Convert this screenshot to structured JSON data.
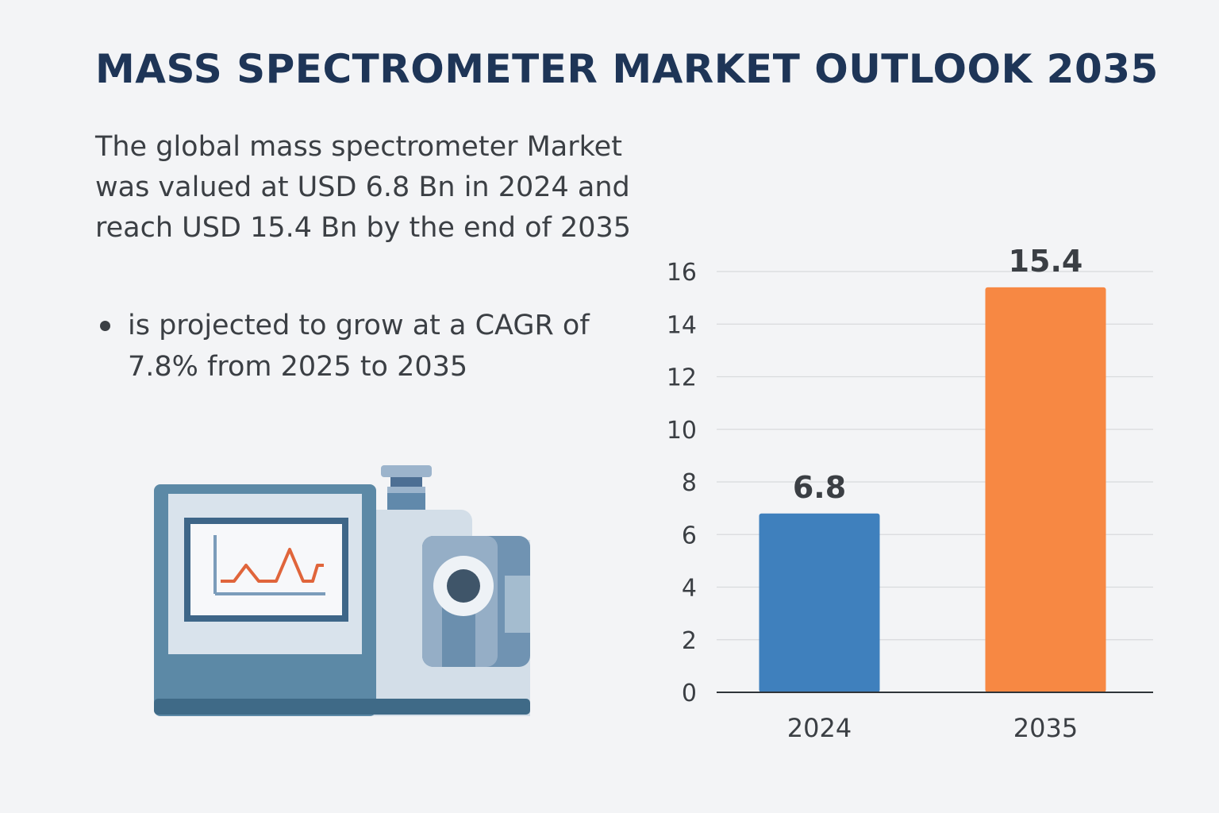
{
  "title": "MASS SPECTROMETER MARKET OUTLOOK 2035",
  "description": "The global mass spectrometer Market was valued at USD 6.8 Bn in 2024 and reach USD 15.4 Bn by the end of 2035",
  "bullet": "is projected to grow at a CAGR of 7.8% from 2025 to 2035",
  "illustration": {
    "icon": "mass-spectrometer-icon"
  },
  "chart_data": {
    "type": "bar",
    "categories": [
      "2024",
      "2035"
    ],
    "values": [
      6.8,
      15.4
    ],
    "data_labels": [
      "6.8",
      "15.4"
    ],
    "colors": [
      "#3f80bd",
      "#f78843"
    ],
    "yticks": [
      0,
      2,
      4,
      6,
      8,
      10,
      12,
      14,
      16
    ],
    "ylim": [
      0,
      16
    ],
    "grid": true,
    "title": "",
    "xlabel": "",
    "ylabel": ""
  }
}
